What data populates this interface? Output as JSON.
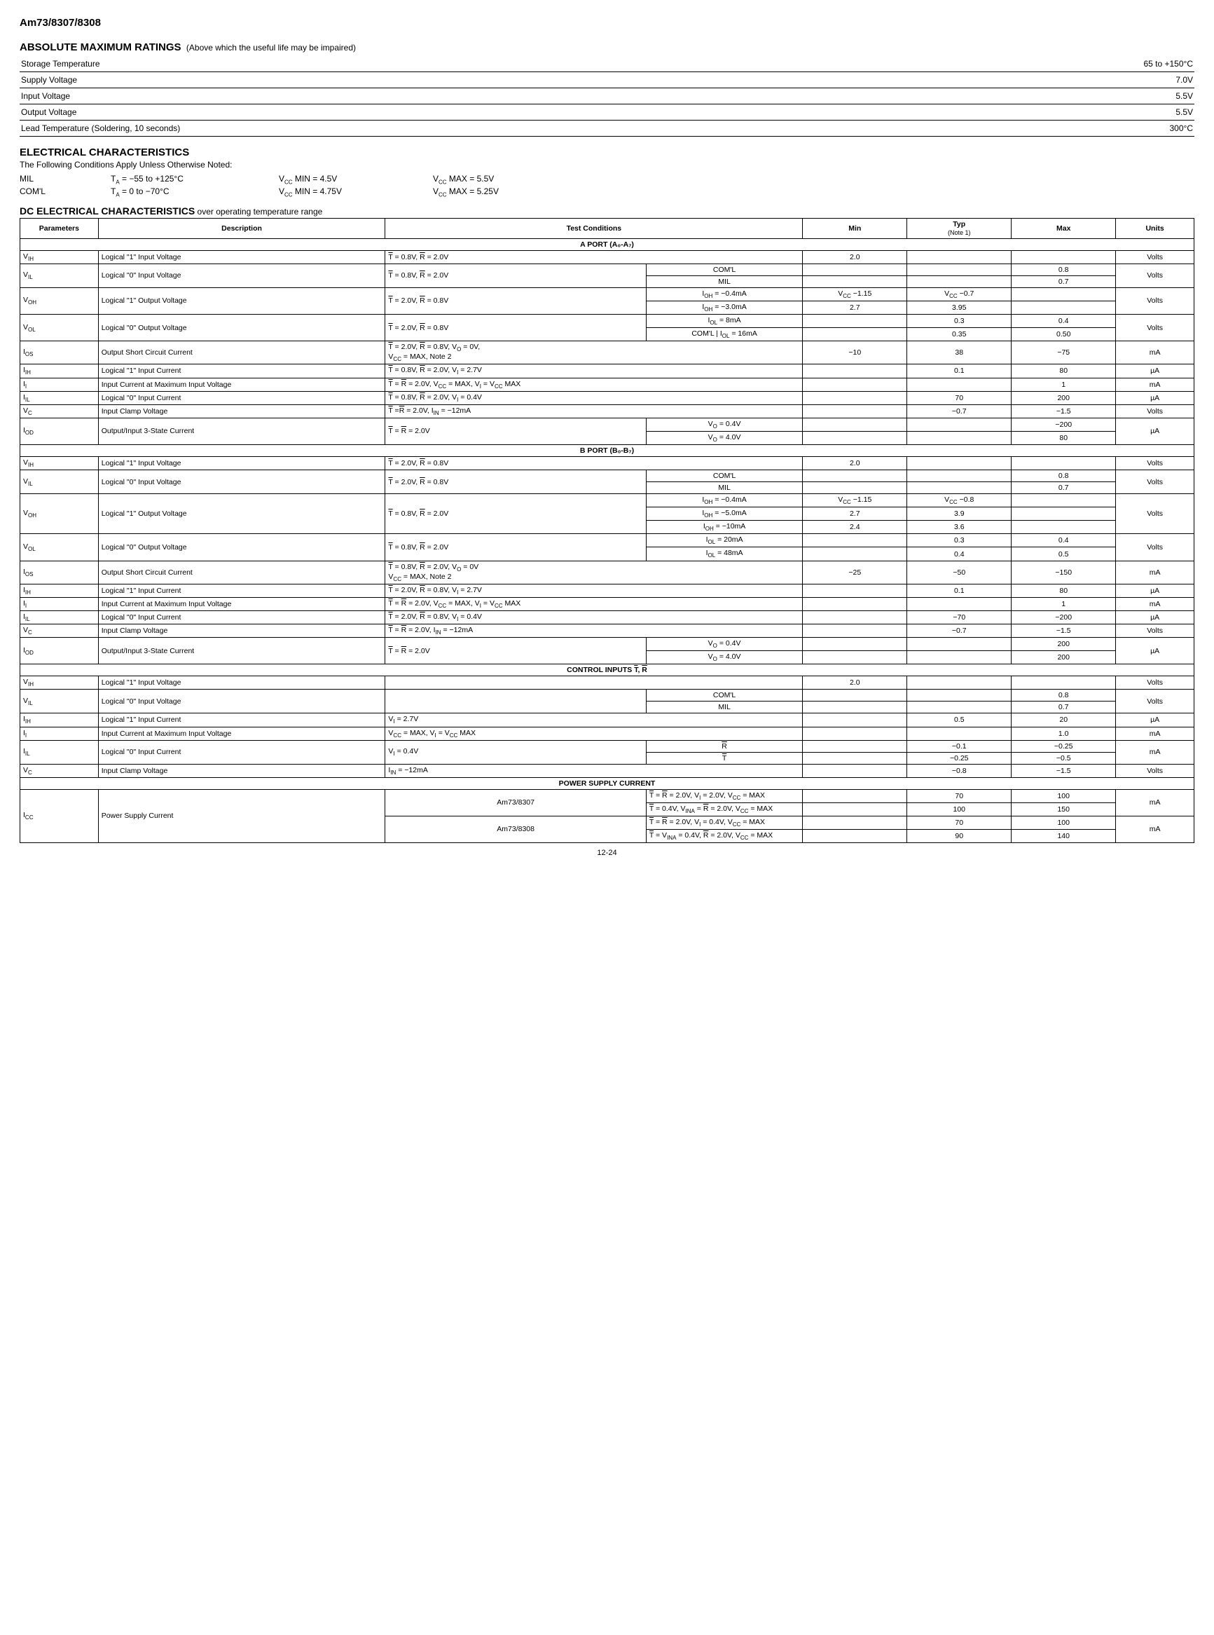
{
  "part": "Am73/8307/8308",
  "abs": {
    "title": "ABSOLUTE MAXIMUM RATINGS",
    "sub": "(Above which the useful life may be impaired)",
    "rows": [
      {
        "p": "Storage Temperature",
        "v": "65 to +150°C"
      },
      {
        "p": "Supply Voltage",
        "v": "7.0V"
      },
      {
        "p": "Input Voltage",
        "v": "5.5V"
      },
      {
        "p": "Output Voltage",
        "v": "5.5V"
      },
      {
        "p": "Lead Temperature (Soldering, 10 seconds)",
        "v": "300°C"
      }
    ]
  },
  "elec": {
    "title": "ELECTRICAL CHARACTERISTICS",
    "note": "The Following Conditions Apply Unless Otherwise Noted:",
    "cond": [
      {
        "g": "MIL",
        "ta": "T_A = −55 to +125°C",
        "min": "V_CC MIN = 4.5V",
        "max": "V_CC MAX = 5.5V"
      },
      {
        "g": "COM'L",
        "ta": "T_A = 0 to −70°C",
        "min": "V_CC MIN = 4.75V",
        "max": "V_CC MAX = 5.25V"
      }
    ]
  },
  "dc": {
    "title": "DC ELECTRICAL CHARACTERISTICS",
    "sub": "over operating temperature range",
    "hdr": {
      "p": "Parameters",
      "d": "Description",
      "tc": "Test Conditions",
      "min": "Min",
      "typ": "Typ",
      "n1": "(Note 1)",
      "max": "Max",
      "u": "Units"
    },
    "sections": {
      "a": "A PORT (A₀-A₇)",
      "b": "B PORT (B₀-B₇)",
      "c": "CONTROL INPUTS T̄, R̄",
      "p": "POWER SUPPLY CURRENT"
    }
  },
  "labels": {
    "coml": "COM'L",
    "mil": "MIL",
    "R": "R̄",
    "T": "T̄"
  },
  "a": [
    {
      "sym": "V_IH",
      "d": "Logical \"1\" Input Voltage",
      "tc": "T̄ = 0.8V, R̄ = 2.0V",
      "min": "2.0",
      "typ": "",
      "max": "",
      "u": "Volts"
    },
    {
      "sym": "V_IL",
      "d": "Logical \"0\" Input Voltage",
      "tc": "T̄ = 0.8V, R̄ = 2.0V",
      "sub": [
        {
          "s": "COM'L",
          "min": "",
          "typ": "",
          "max": "0.8"
        },
        {
          "s": "MIL",
          "min": "",
          "typ": "",
          "max": "0.7"
        }
      ],
      "u": "Volts"
    },
    {
      "sym": "V_OH",
      "d": "Logical \"1\" Output Voltage",
      "tc": "T̄ = 2.0V, R̄ = 0.8V",
      "sub": [
        {
          "s": "I_OH = −0.4mA",
          "min": "V_CC −1.15",
          "typ": "V_CC −0.7",
          "max": ""
        },
        {
          "s": "I_OH = −3.0mA",
          "min": "2.7",
          "typ": "3.95",
          "max": ""
        }
      ],
      "u": "Volts"
    },
    {
      "sym": "V_OL",
      "d": "Logical \"0\" Output Voltage",
      "tc": "T̄ = 2.0V, R̄ = 0.8V",
      "sub": [
        {
          "s": "I_OL = 8mA",
          "min": "",
          "typ": "0.3",
          "max": "0.4"
        },
        {
          "s": "COM'L | I_OL = 16mA",
          "min": "",
          "typ": "0.35",
          "max": "0.50"
        }
      ],
      "u": "Volts"
    },
    {
      "sym": "I_OS",
      "d": "Output Short Circuit Current",
      "tc": "T̄ = 2.0V, R̄ = 0.8V, V_O = 0V,\nV_CC = MAX, Note 2",
      "min": "−10",
      "typ": "38",
      "max": "−75",
      "u": "mA"
    },
    {
      "sym": "I_IH",
      "d": "Logical \"1\" Input Current",
      "tc": "T̄ = 0.8V, R̄ = 2.0V, V_I = 2.7V",
      "min": "",
      "typ": "0.1",
      "max": "80",
      "u": "µA"
    },
    {
      "sym": "I_I",
      "d": "Input Current at Maximum Input Voltage",
      "tc": "T̄ = R̄ = 2.0V, V_CC = MAX, V_I = V_CC MAX",
      "min": "",
      "typ": "",
      "max": "1",
      "u": "mA"
    },
    {
      "sym": "I_IL",
      "d": "Logical \"0\" Input Current",
      "tc": "T̄ = 0.8V, R̄ = 2.0V, V_I = 0.4V",
      "min": "",
      "typ": "70",
      "max": "200",
      "u": "µA"
    },
    {
      "sym": "V_C",
      "d": "Input Clamp Voltage",
      "tc": "T̄ =R̄ = 2.0V, I_IN = −12mA",
      "min": "",
      "typ": "−0.7",
      "max": "−1.5",
      "u": "Volts"
    },
    {
      "sym": "I_OD",
      "d": "Output/Input 3-State Current",
      "tc": "T̄ = R̄ = 2.0V",
      "sub": [
        {
          "s": "V_O = 0.4V",
          "min": "",
          "typ": "",
          "max": "−200"
        },
        {
          "s": "V_O = 4.0V",
          "min": "",
          "typ": "",
          "max": "80"
        }
      ],
      "u": "µA"
    }
  ],
  "b": [
    {
      "sym": "V_IH",
      "d": "Logical \"1\" Input Voltage",
      "tc": "T̄ = 2.0V, R̄ = 0.8V",
      "min": "2.0",
      "typ": "",
      "max": "",
      "u": "Volts"
    },
    {
      "sym": "V_IL",
      "d": "Logical \"0\" Input Voltage",
      "tc": "T̄ = 2.0V, R̄ = 0.8V",
      "sub": [
        {
          "s": "COM'L",
          "min": "",
          "typ": "",
          "max": "0.8"
        },
        {
          "s": "MIL",
          "min": "",
          "typ": "",
          "max": "0.7"
        }
      ],
      "u": "Volts"
    },
    {
      "sym": "V_OH",
      "d": "Logical \"1\" Output Voltage",
      "tc": "T̄ = 0.8V, R̄ = 2.0V",
      "sub": [
        {
          "s": "I_OH = −0.4mA",
          "min": "V_CC −1.15",
          "typ": "V_CC −0.8",
          "max": ""
        },
        {
          "s": "I_OH = −5.0mA",
          "min": "2.7",
          "typ": "3.9",
          "max": ""
        },
        {
          "s": "I_OH = −10mA",
          "min": "2.4",
          "typ": "3.6",
          "max": ""
        }
      ],
      "u": "Volts"
    },
    {
      "sym": "V_OL",
      "d": "Logical \"0\" Output Voltage",
      "tc": "T̄ = 0.8V, R̄ = 2.0V",
      "sub": [
        {
          "s": "I_OL = 20mA",
          "min": "",
          "typ": "0.3",
          "max": "0.4"
        },
        {
          "s": "I_OL = 48mA",
          "min": "",
          "typ": "0.4",
          "max": "0.5"
        }
      ],
      "u": "Volts"
    },
    {
      "sym": "I_OS",
      "d": "Output Short Circuit Current",
      "tc": "T̄ = 0.8V, R̄ = 2.0V, V_O = 0V\nV_CC = MAX, Note 2",
      "min": "−25",
      "typ": "−50",
      "max": "−150",
      "u": "mA"
    },
    {
      "sym": "I_IH",
      "d": "Logical \"1\" Input Current",
      "tc": "T̄ = 2.0V, R̄ = 0.8V, V_I = 2.7V",
      "min": "",
      "typ": "0.1",
      "max": "80",
      "u": "µA"
    },
    {
      "sym": "I_I",
      "d": "Input Current at Maximum Input Voltage",
      "tc": "T̄ = R̄ = 2.0V, V_CC = MAX, V_I = V_CC MAX",
      "min": "",
      "typ": "",
      "max": "1",
      "u": "mA"
    },
    {
      "sym": "I_IL",
      "d": "Logical \"0\" Input Current",
      "tc": "T̄ = 2.0V, R̄ = 0.8V, V_I = 0.4V",
      "min": "",
      "typ": "−70",
      "max": "−200",
      "u": "µA"
    },
    {
      "sym": "V_C",
      "d": "Input Clamp Voltage",
      "tc": "T̄ = R̄ = 2.0V, I_IN = −12mA",
      "min": "",
      "typ": "−0.7",
      "max": "−1.5",
      "u": "Volts"
    },
    {
      "sym": "I_OD",
      "d": "Output/Input 3-State Current",
      "tc": "T̄ = R̄ = 2.0V",
      "sub": [
        {
          "s": "V_O = 0.4V",
          "min": "",
          "typ": "",
          "max": "200"
        },
        {
          "s": "V_O = 4.0V",
          "min": "",
          "typ": "",
          "max": "200"
        }
      ],
      "u": "µA"
    }
  ],
  "crows": [
    {
      "sym": "V_IH",
      "d": "Logical \"1\" Input Voltage",
      "tc": "",
      "min": "2.0",
      "typ": "",
      "max": "",
      "u": "Volts"
    },
    {
      "sym": "V_IL",
      "d": "Logical \"0\" Input Voltage",
      "tc": "",
      "sub": [
        {
          "s": "COM'L",
          "min": "",
          "typ": "",
          "max": "0.8"
        },
        {
          "s": "MIL",
          "min": "",
          "typ": "",
          "max": "0.7"
        }
      ],
      "u": "Volts"
    },
    {
      "sym": "I_IH",
      "d": "Logical \"1\" Input Current",
      "tc": "V_I = 2.7V",
      "min": "",
      "typ": "0.5",
      "max": "20",
      "u": "µA"
    },
    {
      "sym": "I_I",
      "d": "Input Current at Maximum Input Voltage",
      "tc": "V_CC = MAX, V_I = V_CC MAX",
      "min": "",
      "typ": "",
      "max": "1.0",
      "u": "mA"
    },
    {
      "sym": "I_IL",
      "d": "Logical \"0\" Input Current",
      "tc": "V_I = 0.4V",
      "sub": [
        {
          "s": "R̄",
          "min": "",
          "typ": "−0.1",
          "max": "−0.25"
        },
        {
          "s": "T̄",
          "min": "",
          "typ": "−0.25",
          "max": "−0.5"
        }
      ],
      "u": "mA"
    },
    {
      "sym": "V_C",
      "d": "Input Clamp Voltage",
      "tc": "I_IN = −12mA",
      "min": "",
      "typ": "−0.8",
      "max": "−1.5",
      "u": "Volts"
    }
  ],
  "prows": {
    "sym": "I_CC",
    "d": "Power Supply Current",
    "parts": [
      {
        "pn": "Am73/8307",
        "rows": [
          {
            "tc": "T̄ = R̄ = 2.0V, V_I = 2.0V, V_CC = MAX",
            "typ": "70",
            "max": "100"
          },
          {
            "tc": "T̄ = 0.4V, V_INA = R̄ = 2.0V, V_CC = MAX",
            "typ": "100",
            "max": "150"
          }
        ],
        "u": "mA"
      },
      {
        "pn": "Am73/8308",
        "rows": [
          {
            "tc": "T̄ = R̄ = 2.0V, V_I = 0.4V, V_CC = MAX",
            "typ": "70",
            "max": "100"
          },
          {
            "tc": "T̄ = V_INA = 0.4V, R̄ = 2.0V, V_CC = MAX",
            "typ": "90",
            "max": "140"
          }
        ],
        "u": "mA"
      }
    ]
  },
  "pagenum": "12-24"
}
